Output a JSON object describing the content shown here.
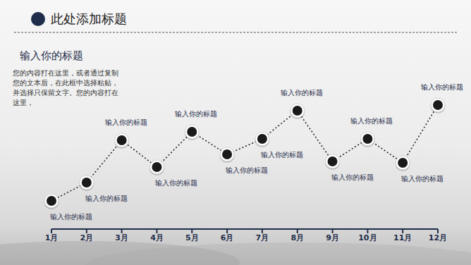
{
  "chart_data": {
    "type": "line",
    "title": "此处添加标题",
    "subtitle": "输入你的标题",
    "body": [
      "您的内容打在这里，或者通过复制",
      "您的文本后，在此框中选择粘贴，",
      "并选择只保留文字。您的内容打在",
      "这里，"
    ],
    "categories": [
      "1月",
      "2月",
      "3月",
      "4月",
      "5月",
      "6月",
      "7月",
      "8月",
      "9月",
      "10月",
      "11月",
      "12月"
    ],
    "values": [
      20,
      33,
      63,
      44,
      69,
      53,
      64,
      84,
      48,
      64,
      47,
      88
    ],
    "annotations": [
      "输入你的标题",
      "输入你的标题",
      "输入你的标题",
      "输入你的标题",
      "输入你的标题",
      "输入你的标题",
      "输入你的标题",
      "输入你的标题",
      "输入你的标题",
      "输入你的标题",
      "输入你的标题",
      "输入你的标题"
    ],
    "ylim": [
      0,
      100
    ],
    "tick_labels": "x",
    "color": "#1a1a1a",
    "marker": "circle",
    "line_style": "dotted"
  }
}
